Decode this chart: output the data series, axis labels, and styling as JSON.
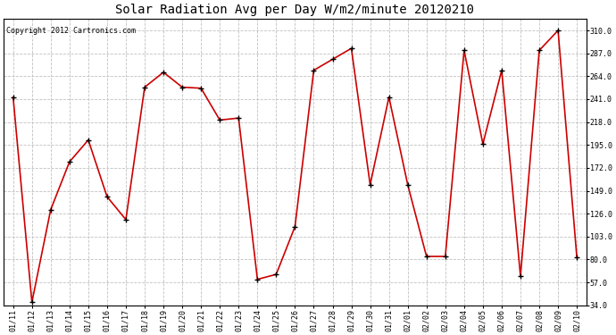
{
  "title": "Solar Radiation Avg per Day W/m2/minute 20120210",
  "copyright_text": "Copyright 2012 Cartronics.com",
  "labels": [
    "01/11",
    "01/12",
    "01/13",
    "01/14",
    "01/15",
    "01/16",
    "01/17",
    "01/18",
    "01/19",
    "01/20",
    "01/21",
    "01/22",
    "01/23",
    "01/24",
    "01/25",
    "01/26",
    "01/27",
    "01/28",
    "01/29",
    "01/30",
    "01/31",
    "02/01",
    "02/02",
    "02/03",
    "02/04",
    "02/05",
    "02/06",
    "02/07",
    "02/08",
    "02/09",
    "02/10"
  ],
  "values": [
    243,
    37,
    130,
    178,
    200,
    143,
    120,
    253,
    268,
    253,
    252,
    220,
    222,
    60,
    65,
    113,
    270,
    281,
    292,
    155,
    243,
    155,
    83,
    83,
    290,
    196,
    270,
    63,
    290,
    310,
    82
  ],
  "line_color": "#cc0000",
  "marker_color": "#000000",
  "background_color": "#ffffff",
  "grid_color": "#c0c0c0",
  "yticks": [
    34.0,
    57.0,
    80.0,
    103.0,
    126.0,
    149.0,
    172.0,
    195.0,
    218.0,
    241.0,
    264.0,
    287.0,
    310.0
  ],
  "ylim": [
    34.0,
    322.0
  ],
  "title_fontsize": 10,
  "tick_fontsize": 6,
  "copyright_fontsize": 6
}
